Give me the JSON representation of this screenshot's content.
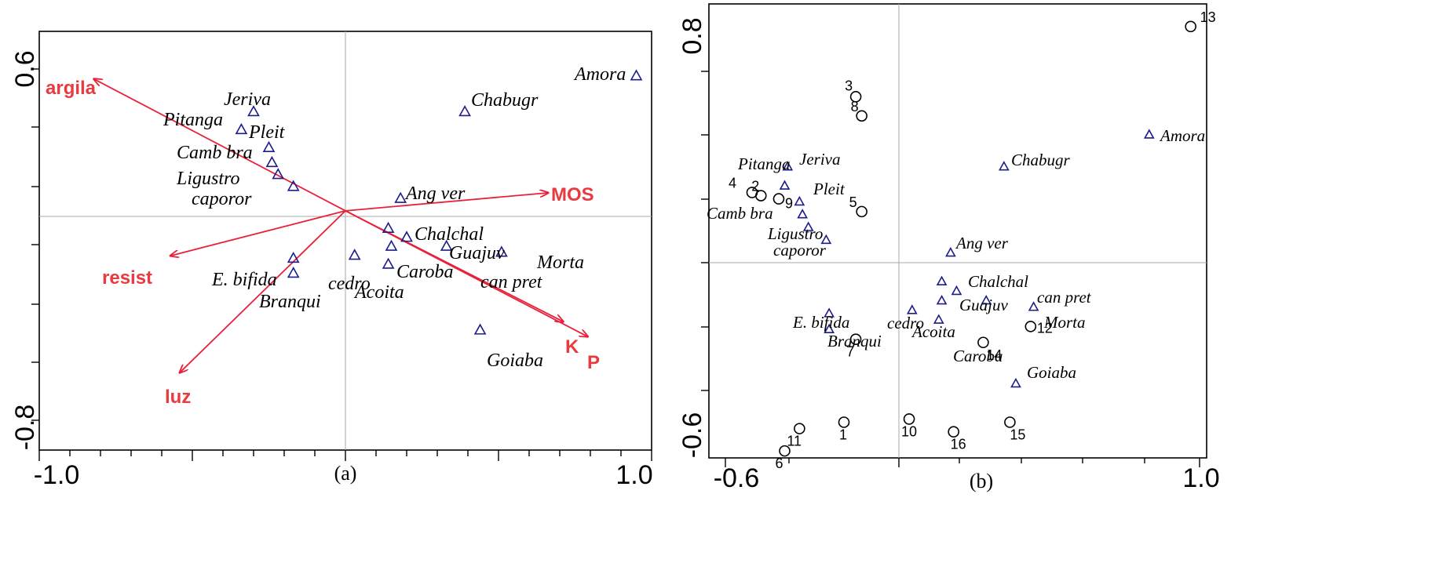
{
  "panels": [
    {
      "caption": "(a)",
      "y_top_label": "0.6",
      "y_bottom_label": "-0.8",
      "x_left_label": "-1.0",
      "x_right_label": "1.0"
    },
    {
      "caption": "(b)",
      "y_top_label": "0.8",
      "y_bottom_label": "-0.6",
      "x_left_label": "-0.6",
      "x_right_label": "1.0"
    }
  ],
  "chart_data": [
    {
      "type": "scatter",
      "title": "",
      "xlim": [
        -1.0,
        1.0
      ],
      "ylim": [
        -0.8,
        0.6
      ],
      "grid": false,
      "arrow_color": "#e83a3f",
      "species_color": "#1c1c8a",
      "species": [
        {
          "name": "Amora",
          "x": 0.95,
          "y": 0.45
        },
        {
          "name": "Chabugr",
          "x": 0.39,
          "y": 0.33
        },
        {
          "name": "Jeriva",
          "x": -0.3,
          "y": 0.33
        },
        {
          "name": "Pitanga",
          "x": -0.34,
          "y": 0.27
        },
        {
          "name": "Pleit",
          "x": -0.25,
          "y": 0.21
        },
        {
          "name": "Camb bra",
          "x": -0.24,
          "y": 0.16
        },
        {
          "name": "Ligustro",
          "x": -0.22,
          "y": 0.12
        },
        {
          "name": "caporor",
          "x": -0.17,
          "y": 0.08
        },
        {
          "name": "Ang ver",
          "x": 0.18,
          "y": 0.04
        },
        {
          "name": "Chalchal",
          "x": 0.14,
          "y": -0.06
        },
        {
          "name": "Chalchal",
          "x": 0.2,
          "y": -0.09
        },
        {
          "name": "Guajuv",
          "x": 0.15,
          "y": -0.12
        },
        {
          "name": "Guajuv",
          "x": 0.33,
          "y": -0.12
        },
        {
          "name": "Morta",
          "x": 0.51,
          "y": -0.14
        },
        {
          "name": "Caroba",
          "x": 0.14,
          "y": -0.18
        },
        {
          "name": "cedro",
          "x": 0.03,
          "y": -0.15
        },
        {
          "name": "E. bifida",
          "x": -0.17,
          "y": -0.16
        },
        {
          "name": "Branqui",
          "x": -0.17,
          "y": -0.21
        },
        {
          "name": "Goiaba",
          "x": 0.44,
          "y": -0.4
        }
      ],
      "species_labels": [
        {
          "text": "Amora"
        },
        {
          "text": "Chabugr"
        },
        {
          "text": "Jeriva"
        },
        {
          "text": "Pitanga"
        },
        {
          "text": "Pleit"
        },
        {
          "text": "Camb bra"
        },
        {
          "text": "Ligustro"
        },
        {
          "text": "caporor"
        },
        {
          "text": "Ang ver"
        },
        {
          "text": "Chalchal"
        },
        {
          "text": "Guajuv"
        },
        {
          "text": "Morta"
        },
        {
          "text": "can pret"
        },
        {
          "text": "Caroba"
        },
        {
          "text": "cedro"
        },
        {
          "text": "Acoita"
        },
        {
          "text": "E. bifida"
        },
        {
          "text": "Branqui"
        },
        {
          "text": "Goiaba"
        }
      ],
      "environment_vectors": [
        {
          "name": "argila",
          "x": -0.82,
          "y": 0.44
        },
        {
          "name": "MOS",
          "x": 0.66,
          "y": 0.06
        },
        {
          "name": "resist",
          "x": -0.57,
          "y": -0.15
        },
        {
          "name": "luz",
          "x": -0.54,
          "y": -0.54
        },
        {
          "name": "K",
          "x": 0.71,
          "y": -0.37
        },
        {
          "name": "P",
          "x": 0.79,
          "y": -0.42
        }
      ]
    },
    {
      "type": "scatter",
      "title": "",
      "xlim": [
        -0.6,
        1.0
      ],
      "ylim": [
        -0.6,
        0.8
      ],
      "grid": false,
      "species_color": "#1c1c8a",
      "species": [
        {
          "name": "Amora",
          "x": 0.83,
          "y": 0.4
        },
        {
          "name": "Chabugr",
          "x": 0.34,
          "y": 0.3
        },
        {
          "name": "Jeriva",
          "x": -0.39,
          "y": 0.3
        },
        {
          "name": "Pleit",
          "x": -0.4,
          "y": 0.24
        },
        {
          "name": "Camb bra",
          "x": -0.35,
          "y": 0.19
        },
        {
          "name": "Camb bra",
          "x": -0.34,
          "y": 0.15
        },
        {
          "name": "Ligustro",
          "x": -0.32,
          "y": 0.11
        },
        {
          "name": "caporor",
          "x": -0.26,
          "y": 0.07
        },
        {
          "name": "Ang ver",
          "x": 0.16,
          "y": 0.03
        },
        {
          "name": "Chalchal",
          "x": 0.13,
          "y": -0.06
        },
        {
          "name": "Chalchal",
          "x": 0.18,
          "y": -0.09
        },
        {
          "name": "Guajuv",
          "x": 0.13,
          "y": -0.12
        },
        {
          "name": "Guajuv",
          "x": 0.28,
          "y": -0.12
        },
        {
          "name": "can pret",
          "x": 0.44,
          "y": -0.14
        },
        {
          "name": "cedro",
          "x": 0.03,
          "y": -0.15
        },
        {
          "name": "Acoita",
          "x": 0.12,
          "y": -0.18
        },
        {
          "name": "E. bifida",
          "x": -0.25,
          "y": -0.16
        },
        {
          "name": "Branqui",
          "x": -0.25,
          "y": -0.21
        },
        {
          "name": "Goiaba",
          "x": 0.38,
          "y": -0.38
        }
      ],
      "species_labels": [
        {
          "text": "Amora"
        },
        {
          "text": "Chabugr"
        },
        {
          "text": "Pitanga"
        },
        {
          "text": "Jeriva"
        },
        {
          "text": "Pleit"
        },
        {
          "text": "Camb bra"
        },
        {
          "text": "Ligustro"
        },
        {
          "text": "caporor"
        },
        {
          "text": "Ang ver"
        },
        {
          "text": "Chalchal"
        },
        {
          "text": "Guajuv"
        },
        {
          "text": "can pret"
        },
        {
          "text": "Morta"
        },
        {
          "text": "E. bifida"
        },
        {
          "text": "cedro"
        },
        {
          "text": "Acoita"
        },
        {
          "text": "Branqui"
        },
        {
          "text": "Caroba"
        },
        {
          "text": "Goiaba"
        }
      ],
      "sites": [
        {
          "label": "1",
          "x": -0.2,
          "y": -0.5
        },
        {
          "label": "2",
          "x": -0.48,
          "y": 0.21
        },
        {
          "label": "3",
          "x": -0.16,
          "y": 0.52
        },
        {
          "label": "4",
          "x": -0.51,
          "y": 0.22
        },
        {
          "label": "5",
          "x": -0.14,
          "y": 0.16
        },
        {
          "label": "6",
          "x": -0.4,
          "y": -0.59
        },
        {
          "label": "7",
          "x": -0.16,
          "y": -0.24
        },
        {
          "label": "8",
          "x": -0.14,
          "y": 0.46
        },
        {
          "label": "9",
          "x": -0.42,
          "y": 0.2
        },
        {
          "label": "10",
          "x": 0.02,
          "y": -0.49
        },
        {
          "label": "11",
          "x": -0.35,
          "y": -0.52
        },
        {
          "label": "12",
          "x": 0.43,
          "y": -0.2
        },
        {
          "label": "13",
          "x": 0.97,
          "y": 0.74
        },
        {
          "label": "14",
          "x": 0.27,
          "y": -0.25
        },
        {
          "label": "15",
          "x": 0.36,
          "y": -0.5
        },
        {
          "label": "16",
          "x": 0.17,
          "y": -0.53
        }
      ]
    }
  ]
}
